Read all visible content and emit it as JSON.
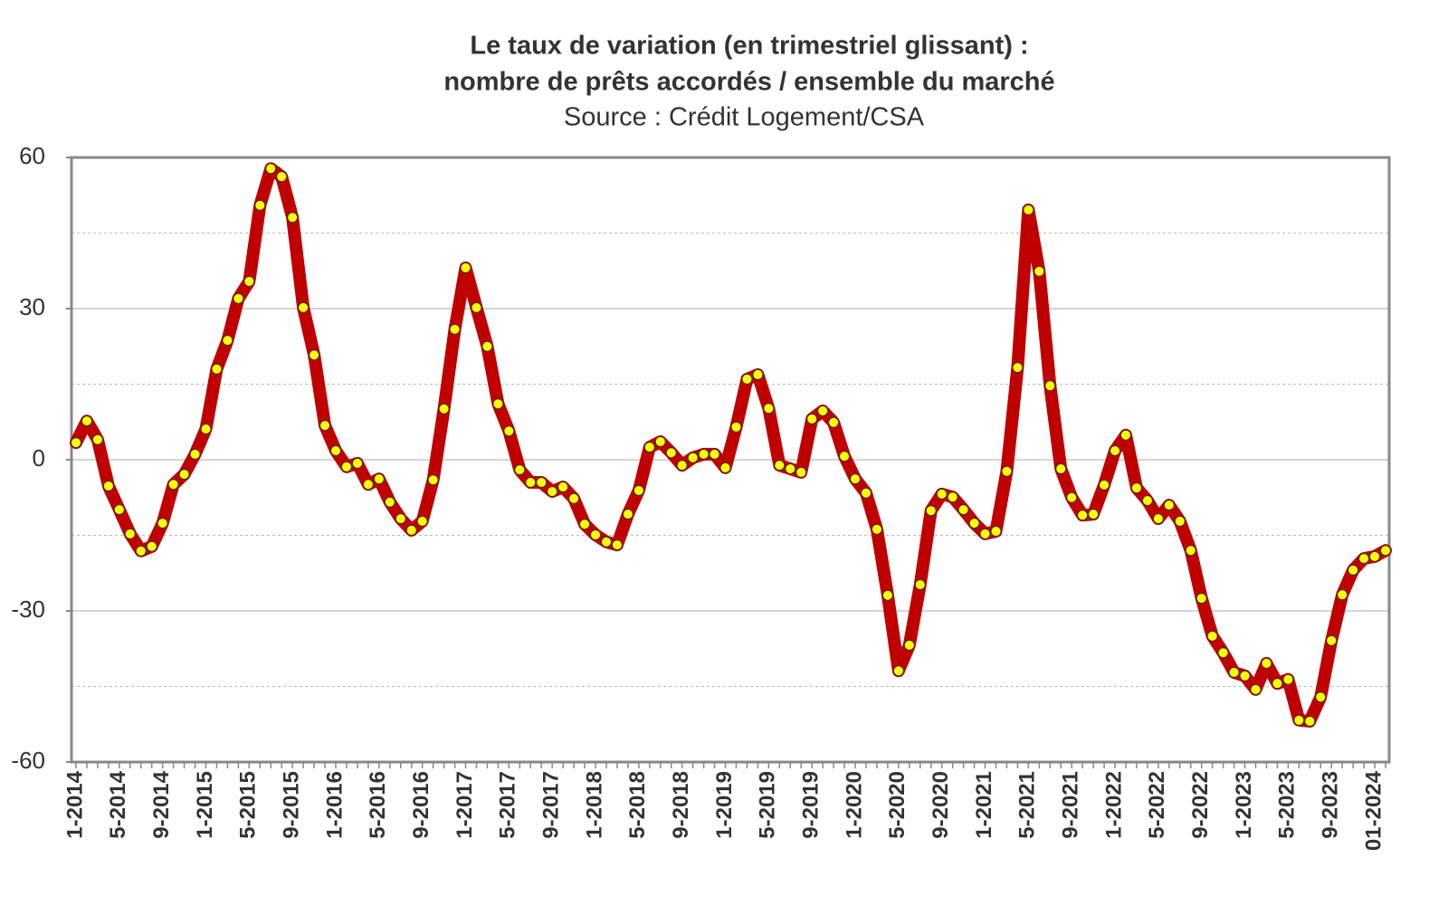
{
  "chart_data": {
    "type": "line",
    "title": [
      "Le taux de variation (en trimestriel glissant) :",
      "nombre de prêts accordés / ensemble du marché"
    ],
    "subtitle": "Source : Crédit Logement/CSA",
    "categories": [
      "1-2014",
      null,
      null,
      null,
      "5-2014",
      null,
      null,
      null,
      "9-2014",
      null,
      null,
      null,
      "1-2015",
      null,
      null,
      null,
      "5-2015",
      null,
      null,
      null,
      "9-2015",
      null,
      null,
      null,
      "1-2016",
      null,
      null,
      null,
      "5-2016",
      null,
      null,
      null,
      "9-2016",
      null,
      null,
      null,
      "1-2017",
      null,
      null,
      null,
      "5-2017",
      null,
      null,
      null,
      "9-2017",
      null,
      null,
      null,
      "1-2018",
      null,
      null,
      null,
      "5-2018",
      null,
      null,
      null,
      "9-2018",
      null,
      null,
      null,
      "1-2019",
      null,
      null,
      null,
      "5-2019",
      null,
      null,
      null,
      "9-2019",
      null,
      null,
      null,
      "1-2020",
      null,
      null,
      null,
      "5-2020",
      null,
      null,
      null,
      "9-2020",
      null,
      null,
      null,
      "1-2021",
      null,
      null,
      null,
      "5-2021",
      null,
      null,
      null,
      "9-2021",
      null,
      null,
      null,
      "1-2022",
      null,
      null,
      null,
      "5-2022",
      null,
      null,
      null,
      "9-2022",
      null,
      null,
      null,
      "1-2023",
      null,
      null,
      null,
      "5-2023",
      null,
      null,
      null,
      "9-2023",
      null,
      null,
      null,
      "01-2024",
      null
    ],
    "series": [
      {
        "color": "#c00000",
        "marker_color": "#ffff00",
        "values": [
          3.4,
          7.7,
          4,
          -5.2,
          -9.9,
          -14.7,
          -18.1,
          -17.2,
          -12.6,
          -4.9,
          -2.9,
          1.1,
          6.1,
          18,
          23.7,
          32,
          35.4,
          50.5,
          57.8,
          56.2,
          48.1,
          30.2,
          20.8,
          6.8,
          1.8,
          -1.4,
          -0.7,
          -4.9,
          -3.8,
          -8.4,
          -11.7,
          -14,
          -12.2,
          -4,
          10.1,
          25.9,
          38.1,
          30.2,
          22.5,
          11.1,
          5.7,
          -2,
          -4.5,
          -4.5,
          -6.3,
          -5.4,
          -7.7,
          -12.8,
          -14.9,
          -16.3,
          -16.9,
          -10.8,
          -6.1,
          2.5,
          3.6,
          1.4,
          -1.1,
          0.4,
          1.1,
          1.1,
          -1.6,
          6.5,
          16,
          16.9,
          10.2,
          -1.1,
          -1.8,
          -2.5,
          8.1,
          9.7,
          7.4,
          0.7,
          -3.8,
          -6.6,
          -13.8,
          -26.9,
          -41.9,
          -36.8,
          -24.8,
          -10.1,
          -6.8,
          -7.4,
          -9.9,
          -12.6,
          -14.7,
          -14.2,
          -2.3,
          18.3,
          49.6,
          37.4,
          14.7,
          -1.8,
          -7.5,
          -11,
          -10.8,
          -5,
          1.8,
          4.9,
          -5.6,
          -8.1,
          -11.7,
          -9,
          -12.2,
          -18,
          -27.5,
          -35,
          -38.3,
          -42.2,
          -42.9,
          -45.6,
          -40.4,
          -44.4,
          -43.6,
          -51.7,
          -51.9,
          -47.1,
          -35.9,
          -26.8,
          -21.9,
          -19.6,
          -19.2,
          -18
        ]
      }
    ],
    "ylim": [
      -60,
      60
    ],
    "yticks": [
      -60,
      -30,
      0,
      30,
      60
    ],
    "grid": true
  }
}
